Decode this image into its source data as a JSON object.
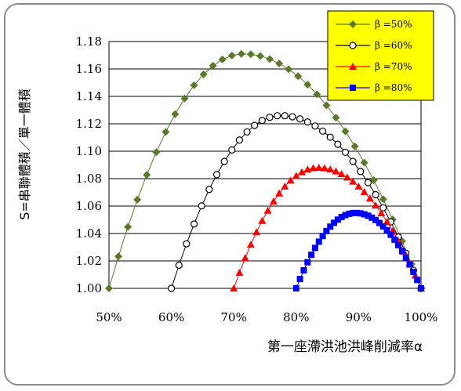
{
  "chart_data": {
    "type": "line",
    "xlabel": "第一座滯洪池洪峰削減率α",
    "ylabel": "S=串聯體積／單一體積",
    "xlim": [
      0.5,
      1.0
    ],
    "ylim": [
      1.0,
      1.18
    ],
    "x_ticks": [
      "50%",
      "60%",
      "70%",
      "80%",
      "90%",
      "100%"
    ],
    "y_ticks": [
      "1.00",
      "1.02",
      "1.04",
      "1.06",
      "1.08",
      "1.10",
      "1.12",
      "1.14",
      "1.16",
      "1.18"
    ],
    "grid": "horizontal",
    "legend_position": "top-right",
    "series": [
      {
        "name": "β =50%",
        "marker": "diamond",
        "color": "#5a7a2a",
        "peak_x": 0.715,
        "peak_y": 1.171,
        "x_start": 0.5
      },
      {
        "name": "β =60%",
        "marker": "open-circle",
        "color": "#000000",
        "peak_x": 0.775,
        "peak_y": 1.126,
        "x_start": 0.6
      },
      {
        "name": "β =70%",
        "marker": "triangle",
        "color": "#ff0000",
        "peak_x": 0.835,
        "peak_y": 1.088,
        "x_start": 0.7
      },
      {
        "name": "β =80%",
        "marker": "square",
        "color": "#0000ff",
        "peak_x": 0.895,
        "peak_y": 1.055,
        "x_start": 0.8
      }
    ]
  }
}
